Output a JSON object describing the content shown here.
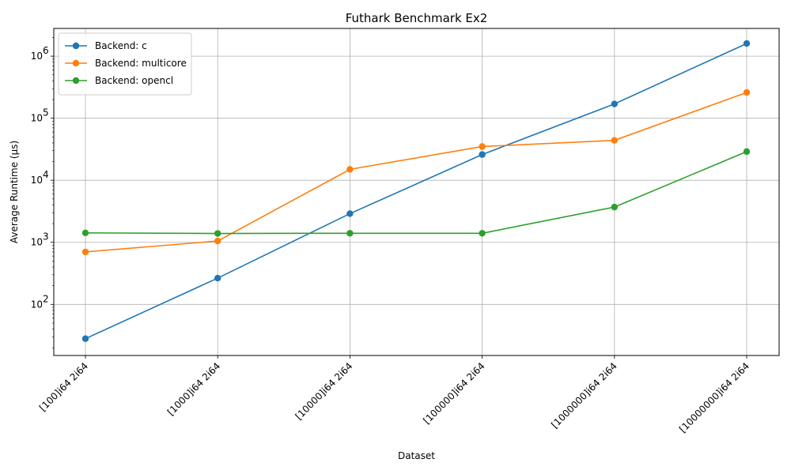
{
  "chart_data": {
    "type": "line",
    "title": "Futhark Benchmark Ex2",
    "xlabel": "Dataset",
    "ylabel": "Average Runtime (μs)",
    "yscale": "log",
    "ylim": [
      15,
      2800000
    ],
    "grid": true,
    "legend_position": "top-left",
    "categories": [
      "[100]i64 2i64",
      "[1000]i64 2i64",
      "[10000]i64 2i64",
      "[100000]i64 2i64",
      "[1000000]i64 2i64",
      "[10000000]i64 2i64"
    ],
    "y_ticks": [
      {
        "value": 100,
        "base": "10",
        "exp": "2"
      },
      {
        "value": 1000,
        "base": "10",
        "exp": "3"
      },
      {
        "value": 10000,
        "base": "10",
        "exp": "4"
      },
      {
        "value": 100000,
        "base": "10",
        "exp": "5"
      },
      {
        "value": 1000000,
        "base": "10",
        "exp": "6"
      }
    ],
    "series": [
      {
        "name": "Backend: c",
        "color": "#1f77b4",
        "values": [
          28,
          265,
          2900,
          26000,
          170000,
          1600000
        ]
      },
      {
        "name": "Backend: multicore",
        "color": "#ff7f0e",
        "values": [
          700,
          1050,
          15000,
          35000,
          44000,
          260000
        ]
      },
      {
        "name": "Backend: opencl",
        "color": "#2ca02c",
        "values": [
          1420,
          1390,
          1400,
          1400,
          3700,
          29000
        ]
      }
    ]
  }
}
